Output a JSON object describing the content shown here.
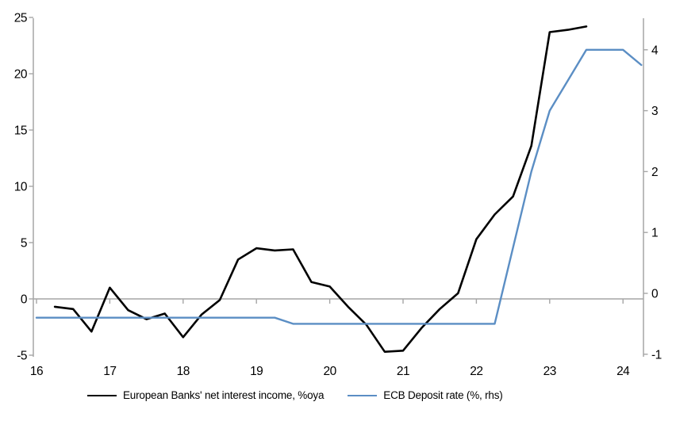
{
  "chart_data": {
    "type": "line",
    "title": "",
    "xlabel": "",
    "ylabel_left": "",
    "ylabel_right": "",
    "x_axis": {
      "ticks": [
        16,
        17,
        18,
        19,
        20,
        21,
        22,
        23,
        24
      ],
      "range": [
        16,
        24.45
      ],
      "grid": false
    },
    "left_axis": {
      "ticks": [
        -5,
        0,
        5,
        10,
        15,
        20,
        25
      ],
      "range": [
        -5,
        25
      ],
      "zero_gridline": true
    },
    "right_axis": {
      "ticks": [
        -1,
        0,
        1,
        2,
        3,
        4
      ],
      "range": [
        -1.06,
        4.47
      ]
    },
    "legend_position": "bottom",
    "series": [
      {
        "name": "European Banks' net interest income, %oya",
        "axis": "left",
        "color": "#000000",
        "x": [
          16.25,
          16.5,
          16.75,
          17.0,
          17.25,
          17.5,
          17.75,
          18.0,
          18.25,
          18.5,
          18.75,
          19.0,
          19.25,
          19.5,
          19.75,
          20.0,
          20.25,
          20.5,
          20.75,
          21.0,
          21.25,
          21.5,
          21.75,
          22.0,
          22.25,
          22.5,
          22.75,
          23.0,
          23.25,
          23.5
        ],
        "values": [
          -0.7,
          -0.9,
          -2.9,
          1.0,
          -1.0,
          -1.8,
          -1.3,
          -3.4,
          -1.4,
          -0.1,
          3.5,
          4.5,
          4.3,
          4.4,
          1.5,
          1.1,
          -0.7,
          -2.3,
          -4.7,
          -4.6,
          -2.6,
          -0.9,
          0.5,
          5.3,
          7.5,
          9.1,
          13.6,
          23.7,
          23.9,
          24.2
        ]
      },
      {
        "name": "ECB Deposit rate (%, rhs)",
        "axis": "right",
        "color": "#5b8ec4",
        "x": [
          16.0,
          16.25,
          16.5,
          16.75,
          17.0,
          17.25,
          17.5,
          17.75,
          18.0,
          18.25,
          18.5,
          18.75,
          19.0,
          19.25,
          19.5,
          19.75,
          20.0,
          20.25,
          20.5,
          20.75,
          21.0,
          21.25,
          21.5,
          21.75,
          22.0,
          22.25,
          22.5,
          22.75,
          23.0,
          23.25,
          23.5,
          23.75,
          24.0,
          24.25
        ],
        "values": [
          -0.4,
          -0.4,
          -0.4,
          -0.4,
          -0.4,
          -0.4,
          -0.4,
          -0.4,
          -0.4,
          -0.4,
          -0.4,
          -0.4,
          -0.4,
          -0.4,
          -0.5,
          -0.5,
          -0.5,
          -0.5,
          -0.5,
          -0.5,
          -0.5,
          -0.5,
          -0.5,
          -0.5,
          -0.5,
          -0.5,
          0.75,
          2.0,
          3.0,
          3.5,
          4.0,
          4.0,
          4.0,
          3.75
        ]
      }
    ]
  },
  "colors": {
    "background": "#ffffff",
    "axis_line": "#a6a6a6",
    "zero_line": "#a6a6a6",
    "tick_label": "#000000",
    "series_black": "#000000",
    "series_blue": "#5b8ec4"
  }
}
